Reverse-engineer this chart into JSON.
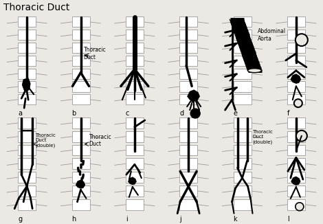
{
  "title": "Thoracic Duct",
  "title_fontsize": 10,
  "bg_color": "#ece9e4",
  "duct_color": "#000000",
  "spine_color": "#888888",
  "rib_color": "#999999",
  "vertebra_fill": "#ffffff",
  "panel_labels": [
    "a",
    "b",
    "c",
    "d",
    "e",
    "f",
    "g",
    "h",
    "i",
    "j",
    "k",
    "l"
  ],
  "label_fontsize": 8,
  "annot_fontsize": 5.5
}
